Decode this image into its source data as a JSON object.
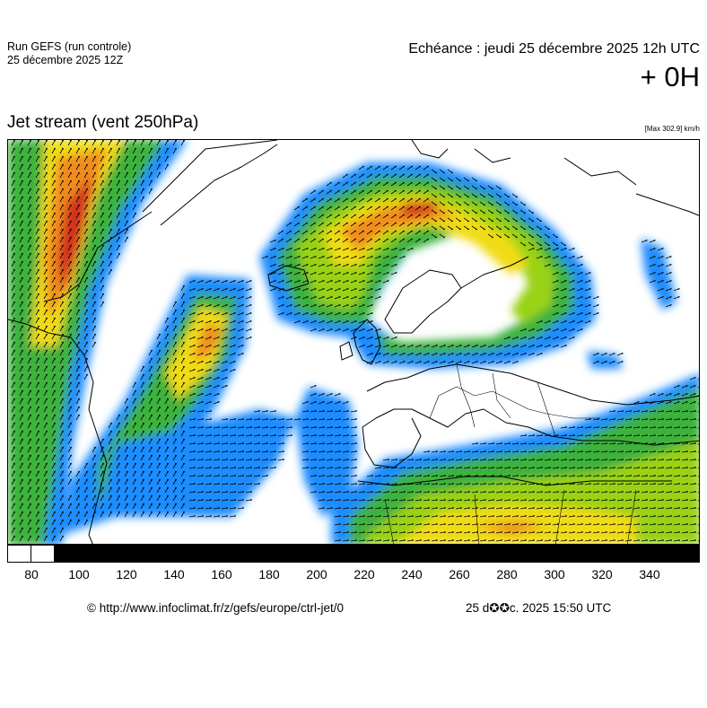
{
  "header": {
    "run_title": "Run GEFS (run controle)",
    "run_date": "25 décembre 2025 12Z",
    "echeance": "Echéance : jeudi 25 décembre 2025 12h UTC",
    "lead_time": "+ 0H"
  },
  "map": {
    "title": "Jet stream (vent 250hPa)",
    "max_note": "[Max 302.9] km/h",
    "colors": {
      "ocean": "#ffffff",
      "land": "#ffffff",
      "coastline": "#000000",
      "wind_blue": "#1e8cff",
      "wind_cyan": "#21c8d8",
      "wind_green": "#3cb23c",
      "wind_lime": "#9ad218",
      "wind_yellow": "#f0dc14",
      "wind_orange": "#f08c1e",
      "wind_red": "#d2321e"
    }
  },
  "scale": {
    "labels": [
      "80",
      "100",
      "120",
      "140",
      "160",
      "180",
      "200",
      "220",
      "240",
      "260",
      "280",
      "300",
      "320",
      "340"
    ]
  },
  "footer": {
    "url": "© http://www.infoclimat.fr/z/gefs/europe/ctrl-jet/0",
    "timestamp": "25 d✪✪c. 2025 15:50 UTC"
  }
}
